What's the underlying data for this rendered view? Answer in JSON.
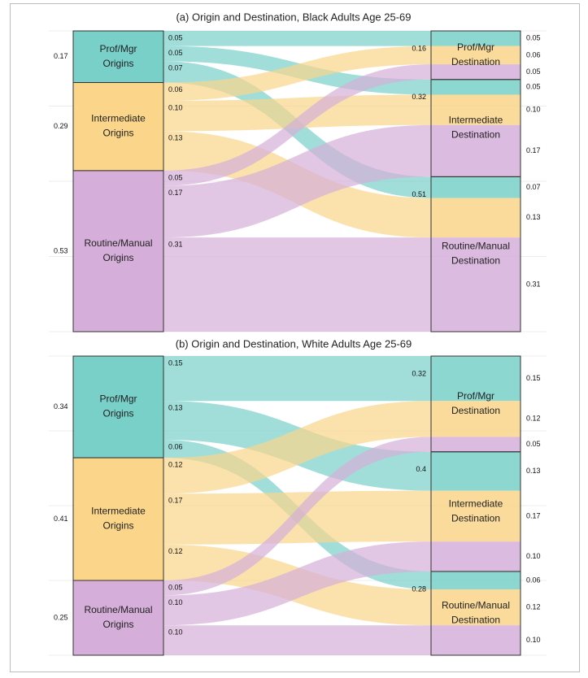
{
  "colors": {
    "prof": "#79d0c9",
    "inter": "#fad58a",
    "routine": "#d5afd9",
    "node_stroke": "#333333",
    "border": "#bdbdbd"
  },
  "chart_data": [
    {
      "type": "sankey",
      "title": "(a) Origin and Destination, Black Adults Age 25-69",
      "origins": [
        {
          "key": "prof",
          "label": "Prof/Mgr\nOrigins",
          "share": 0.17,
          "share_label": "0.17"
        },
        {
          "key": "inter",
          "label": "Intermediate\nOrigins",
          "share": 0.29,
          "share_label": "0.29"
        },
        {
          "key": "routine",
          "label": "Routine/Manual\nOrigins",
          "share": 0.53,
          "share_label": "0.53"
        }
      ],
      "destinations": [
        {
          "key": "prof",
          "label": "Prof/Mgr\nDestination",
          "share": 0.16,
          "share_label": "0.16"
        },
        {
          "key": "inter",
          "label": "Intermediate\nDestination",
          "share": 0.32,
          "share_label": "0.32"
        },
        {
          "key": "routine",
          "label": "Routine/Manual\nDestination",
          "share": 0.51,
          "share_label": "0.51"
        }
      ],
      "flows": [
        {
          "from": "prof",
          "to": "prof",
          "value": 0.05,
          "label": "0.05"
        },
        {
          "from": "prof",
          "to": "inter",
          "value": 0.05,
          "label": "0.05"
        },
        {
          "from": "prof",
          "to": "routine",
          "value": 0.07,
          "label": "0.07"
        },
        {
          "from": "inter",
          "to": "prof",
          "value": 0.06,
          "label": "0.06"
        },
        {
          "from": "inter",
          "to": "inter",
          "value": 0.1,
          "label": "0.10"
        },
        {
          "from": "inter",
          "to": "routine",
          "value": 0.13,
          "label": "0.13"
        },
        {
          "from": "routine",
          "to": "prof",
          "value": 0.05,
          "label": "0.05"
        },
        {
          "from": "routine",
          "to": "inter",
          "value": 0.17,
          "label": "0.17"
        },
        {
          "from": "routine",
          "to": "routine",
          "value": 0.31,
          "label": "0.31"
        }
      ]
    },
    {
      "type": "sankey",
      "title": "(b) Origin and Destination, White Adults Age 25-69",
      "origins": [
        {
          "key": "prof",
          "label": "Prof/Mgr\nOrigins",
          "share": 0.34,
          "share_label": "0.34"
        },
        {
          "key": "inter",
          "label": "Intermediate\nOrigins",
          "share": 0.41,
          "share_label": "0.41"
        },
        {
          "key": "routine",
          "label": "Routine/Manual\nOrigins",
          "share": 0.25,
          "share_label": "0.25"
        }
      ],
      "destinations": [
        {
          "key": "prof",
          "label": "Prof/Mgr\nDestination",
          "share": 0.32,
          "share_label": "0.32"
        },
        {
          "key": "inter",
          "label": "Intermediate\nDestination",
          "share": 0.4,
          "share_label": "0.4"
        },
        {
          "key": "routine",
          "label": "Routine/Manual\nDestination",
          "share": 0.28,
          "share_label": "0.28"
        }
      ],
      "flows": [
        {
          "from": "prof",
          "to": "prof",
          "value": 0.15,
          "label": "0.15"
        },
        {
          "from": "prof",
          "to": "inter",
          "value": 0.13,
          "label": "0.13"
        },
        {
          "from": "prof",
          "to": "routine",
          "value": 0.06,
          "label": "0.06"
        },
        {
          "from": "inter",
          "to": "prof",
          "value": 0.12,
          "label": "0.12"
        },
        {
          "from": "inter",
          "to": "inter",
          "value": 0.17,
          "label": "0.17"
        },
        {
          "from": "inter",
          "to": "routine",
          "value": 0.12,
          "label": "0.12"
        },
        {
          "from": "routine",
          "to": "prof",
          "value": 0.05,
          "label": "0.05"
        },
        {
          "from": "routine",
          "to": "inter",
          "value": 0.1,
          "label": "0.10"
        },
        {
          "from": "routine",
          "to": "routine",
          "value": 0.1,
          "label": "0.10"
        }
      ]
    }
  ]
}
